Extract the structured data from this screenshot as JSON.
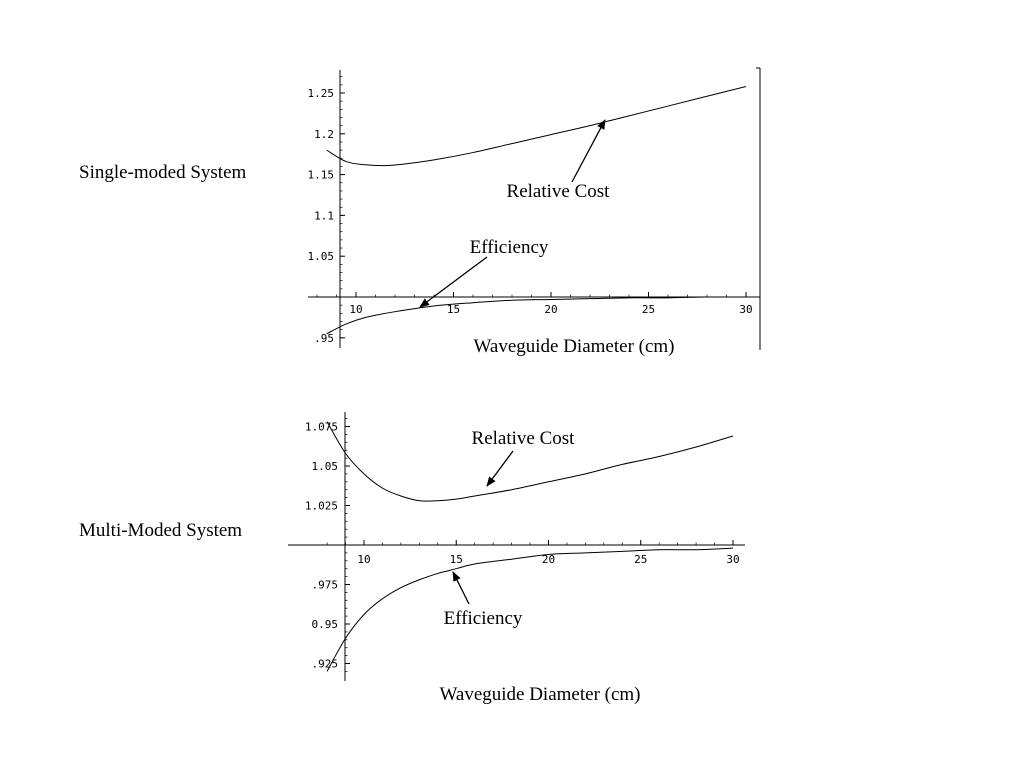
{
  "panels": [
    {
      "system_label": "Single-moded System"
    },
    {
      "system_label": "Multi-Moded System"
    }
  ],
  "chart_data": [
    {
      "type": "line",
      "title": "",
      "xlabel": "Waveguide Diameter (cm)",
      "ylabel": "",
      "xlim": [
        8,
        30
      ],
      "ylim": [
        0.95,
        1.27
      ],
      "x_ticks": [
        10,
        15,
        20,
        25,
        30
      ],
      "x_tick_labels": [
        "10",
        "15",
        "20",
        "25",
        "30"
      ],
      "y_ticks": [
        0.95,
        1.05,
        1.1,
        1.15,
        1.2,
        1.25
      ],
      "y_tick_labels": [
        ".95",
        "1.05",
        "1.1",
        "1.15",
        "1.2",
        "1.25"
      ],
      "grid": false,
      "series": [
        {
          "name": "Relative Cost",
          "x": [
            8.5,
            9.5,
            10.5,
            11.5,
            12.5,
            14,
            16,
            18,
            20,
            22,
            24,
            26,
            28,
            30
          ],
          "y": [
            1.18,
            1.166,
            1.162,
            1.161,
            1.163,
            1.168,
            1.177,
            1.188,
            1.199,
            1.21,
            1.222,
            1.234,
            1.246,
            1.258
          ]
        },
        {
          "name": "Efficiency",
          "x": [
            8.5,
            9.5,
            10.5,
            12,
            14,
            16,
            18,
            20,
            22,
            24,
            26,
            28,
            30
          ],
          "y": [
            0.955,
            0.967,
            0.975,
            0.982,
            0.989,
            0.993,
            0.996,
            0.997,
            0.998,
            0.999,
            0.999,
            1.0,
            1.0
          ]
        }
      ],
      "annotations": [
        {
          "text": "Relative Cost",
          "x": 23,
          "y": 1.2
        },
        {
          "text": "Efficiency",
          "x": 13.5,
          "y": 1.0
        }
      ]
    },
    {
      "type": "line",
      "title": "",
      "xlabel": "Waveguide Diameter (cm)",
      "ylabel": "",
      "xlim": [
        8,
        30.5
      ],
      "ylim": [
        0.92,
        1.08
      ],
      "x_ticks": [
        10,
        15,
        20,
        25,
        30
      ],
      "x_tick_labels": [
        "10",
        "15",
        "20",
        "25",
        "30"
      ],
      "y_ticks": [
        0.925,
        0.95,
        0.975,
        1.025,
        1.05,
        1.075
      ],
      "y_tick_labels": [
        ".925",
        "0.95",
        ".975",
        "1.025",
        "1.05",
        "1.075"
      ],
      "grid": false,
      "series": [
        {
          "name": "Relative Cost",
          "x": [
            8,
            9,
            10,
            11,
            12,
            13,
            14,
            15,
            16,
            18,
            20,
            22,
            24,
            26,
            28,
            30
          ],
          "y": [
            1.078,
            1.058,
            1.045,
            1.036,
            1.031,
            1.028,
            1.028,
            1.029,
            1.031,
            1.035,
            1.04,
            1.045,
            1.051,
            1.056,
            1.062,
            1.069
          ]
        },
        {
          "name": "Efficiency",
          "x": [
            8,
            9,
            10,
            11,
            12,
            13,
            14,
            15,
            16,
            18,
            20,
            22,
            24,
            26,
            28,
            30
          ],
          "y": [
            0.92,
            0.941,
            0.956,
            0.966,
            0.973,
            0.978,
            0.982,
            0.985,
            0.988,
            0.991,
            0.994,
            0.995,
            0.996,
            0.997,
            0.997,
            0.998
          ]
        }
      ],
      "annotations": [
        {
          "text": "Relative Cost",
          "x": 16.5,
          "y": 1.03
        },
        {
          "text": "Efficiency",
          "x": 15,
          "y": 0.985
        }
      ]
    }
  ]
}
